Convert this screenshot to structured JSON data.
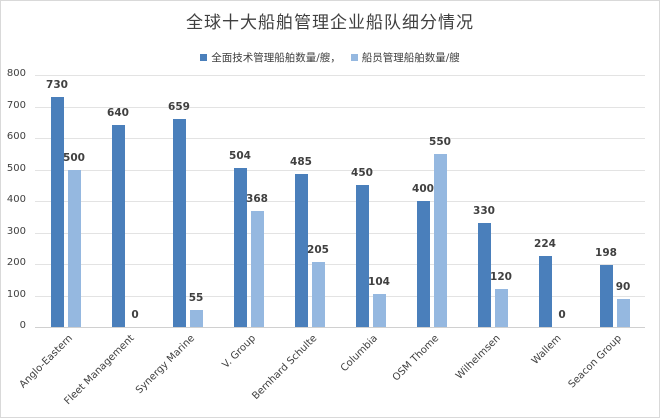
{
  "chart_data": {
    "type": "bar",
    "title": "全球十大船舶管理企业船队细分情况",
    "categories": [
      "Anglo-Eastern",
      "Fleet Management",
      "Synergy Marine",
      "V. Group",
      "Bernhard Schulte",
      "Columbia",
      "OSM Thome",
      "Wilhelmsen",
      "Wallem",
      "Seacon Group"
    ],
    "series": [
      {
        "name": "全面技术管理船舶数量/艘，",
        "color": "#4a7fbb",
        "values": [
          730,
          640,
          659,
          504,
          485,
          450,
          400,
          330,
          224,
          198
        ]
      },
      {
        "name": "船员管理船舶数量/艘",
        "color": "#95b8e0",
        "values": [
          500,
          0,
          55,
          368,
          205,
          104,
          550,
          120,
          0,
          90
        ]
      }
    ],
    "xlabel": "",
    "ylabel": "",
    "ylim": [
      0,
      800
    ],
    "yticks": [
      "0",
      "100",
      "200",
      "300",
      "400",
      "500",
      "600",
      "700",
      "800"
    ],
    "grid": true,
    "legend_position": "top",
    "data_labels": true
  }
}
